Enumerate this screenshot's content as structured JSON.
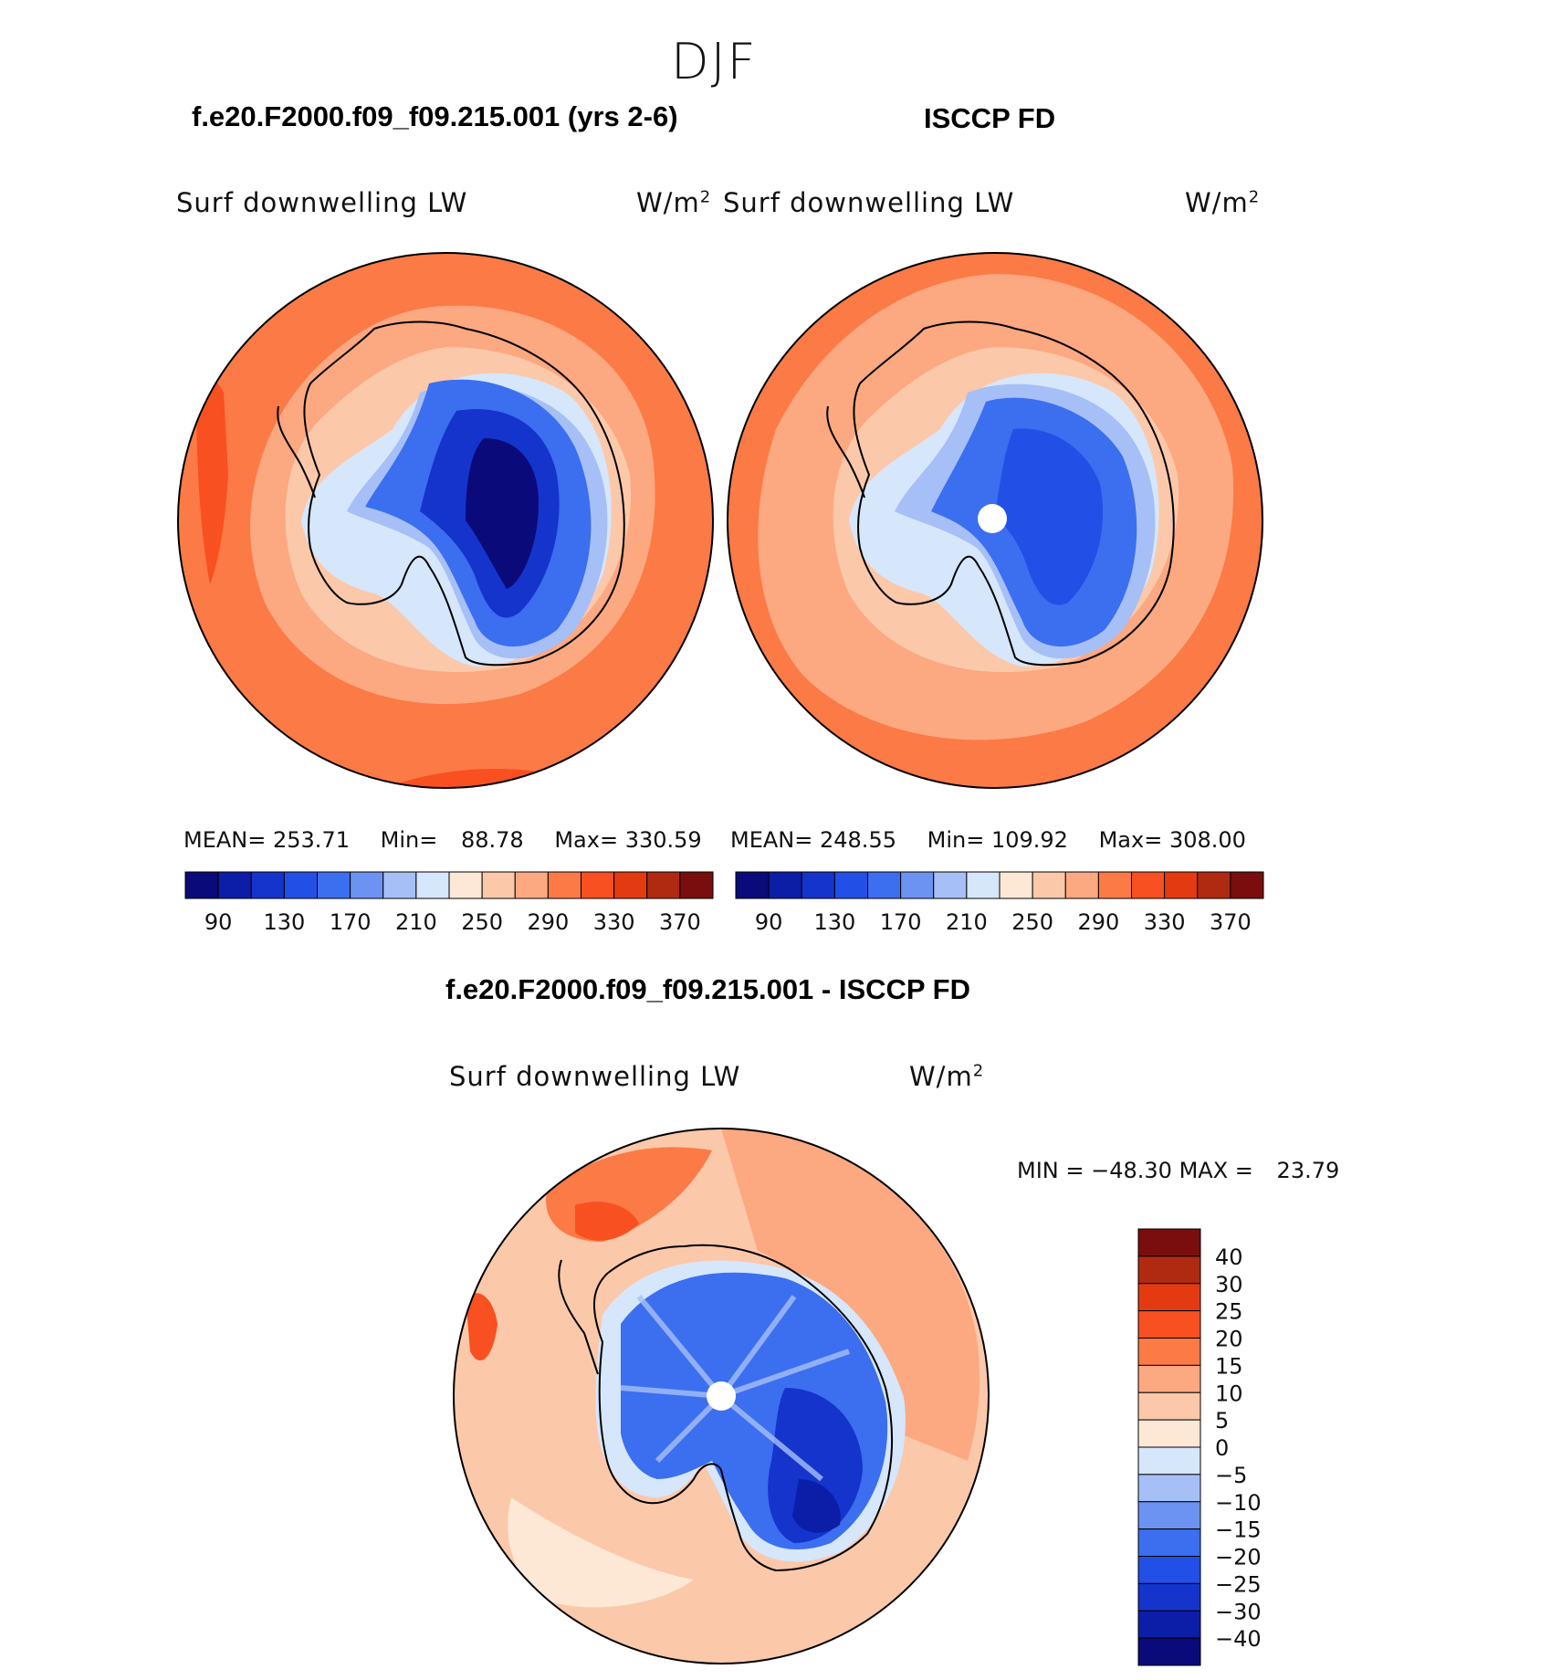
{
  "header": {
    "season": "DJF"
  },
  "panels": {
    "model": {
      "title": "f.e20.F2000.f09_f09.215.001 (yrs 2-6)",
      "variable": "Surf downwelling LW",
      "units": "W/m",
      "units_exponent": "2",
      "stats": {
        "mean_label": "MEAN=",
        "mean": "253.71",
        "min_label": "Min=",
        "min": "88.78",
        "max_label": "Max=",
        "max": "330.59"
      }
    },
    "obs": {
      "title": "ISCCP FD",
      "variable": "Surf downwelling LW",
      "units": "W/m",
      "units_exponent": "2",
      "stats": {
        "mean_label": "MEAN=",
        "mean": "248.55",
        "min_label": "Min=",
        "min": "109.92",
        "max_label": "Max=",
        "max": "308.00"
      }
    },
    "diff": {
      "title": "f.e20.F2000.f09_f09.215.001 - ISCCP FD",
      "variable": "Surf downwelling LW",
      "units": "W/m",
      "units_exponent": "2",
      "stats": {
        "min_label": "MIN =",
        "min": "−48.30",
        "max_label": "MAX =",
        "max": "23.79"
      }
    }
  },
  "chart_data": [
    {
      "type": "heatmap",
      "name": "model-field",
      "projection": "south-polar-stereographic",
      "colorbar": {
        "orientation": "horizontal",
        "tick_labels": [
          "90",
          "130",
          "170",
          "210",
          "250",
          "290",
          "330",
          "370"
        ],
        "colors": [
          "#0a0a7a",
          "#0c1ea8",
          "#1434cc",
          "#2250e6",
          "#3c6ef0",
          "#6c92f2",
          "#a6bff6",
          "#d6e6fb",
          "#fde8d6",
          "#fcc8aa",
          "#fca880",
          "#fb7a46",
          "#f85020",
          "#e43a12",
          "#b02a12",
          "#7a0e0e"
        ]
      }
    },
    {
      "type": "heatmap",
      "name": "obs-field",
      "projection": "south-polar-stereographic",
      "colorbar": {
        "orientation": "horizontal",
        "tick_labels": [
          "90",
          "130",
          "170",
          "210",
          "250",
          "290",
          "330",
          "370"
        ],
        "colors": [
          "#0a0a7a",
          "#0c1ea8",
          "#1434cc",
          "#2250e6",
          "#3c6ef0",
          "#6c92f2",
          "#a6bff6",
          "#d6e6fb",
          "#fde8d6",
          "#fcc8aa",
          "#fca880",
          "#fb7a46",
          "#f85020",
          "#e43a12",
          "#b02a12",
          "#7a0e0e"
        ]
      }
    },
    {
      "type": "heatmap",
      "name": "difference-field",
      "projection": "south-polar-stereographic",
      "colorbar": {
        "orientation": "vertical",
        "tick_labels": [
          "40",
          "30",
          "25",
          "20",
          "15",
          "10",
          "5",
          "0",
          "−5",
          "−10",
          "−15",
          "−20",
          "−25",
          "−30",
          "−40"
        ],
        "colors": [
          "#7a0e0e",
          "#b02a12",
          "#e43a12",
          "#f85020",
          "#fb7a46",
          "#fca880",
          "#fcc8aa",
          "#fde8d6",
          "#d6e6fb",
          "#a6bff6",
          "#6c92f2",
          "#3c6ef0",
          "#2250e6",
          "#1434cc",
          "#0c1ea8",
          "#0a0a7a"
        ]
      }
    }
  ]
}
